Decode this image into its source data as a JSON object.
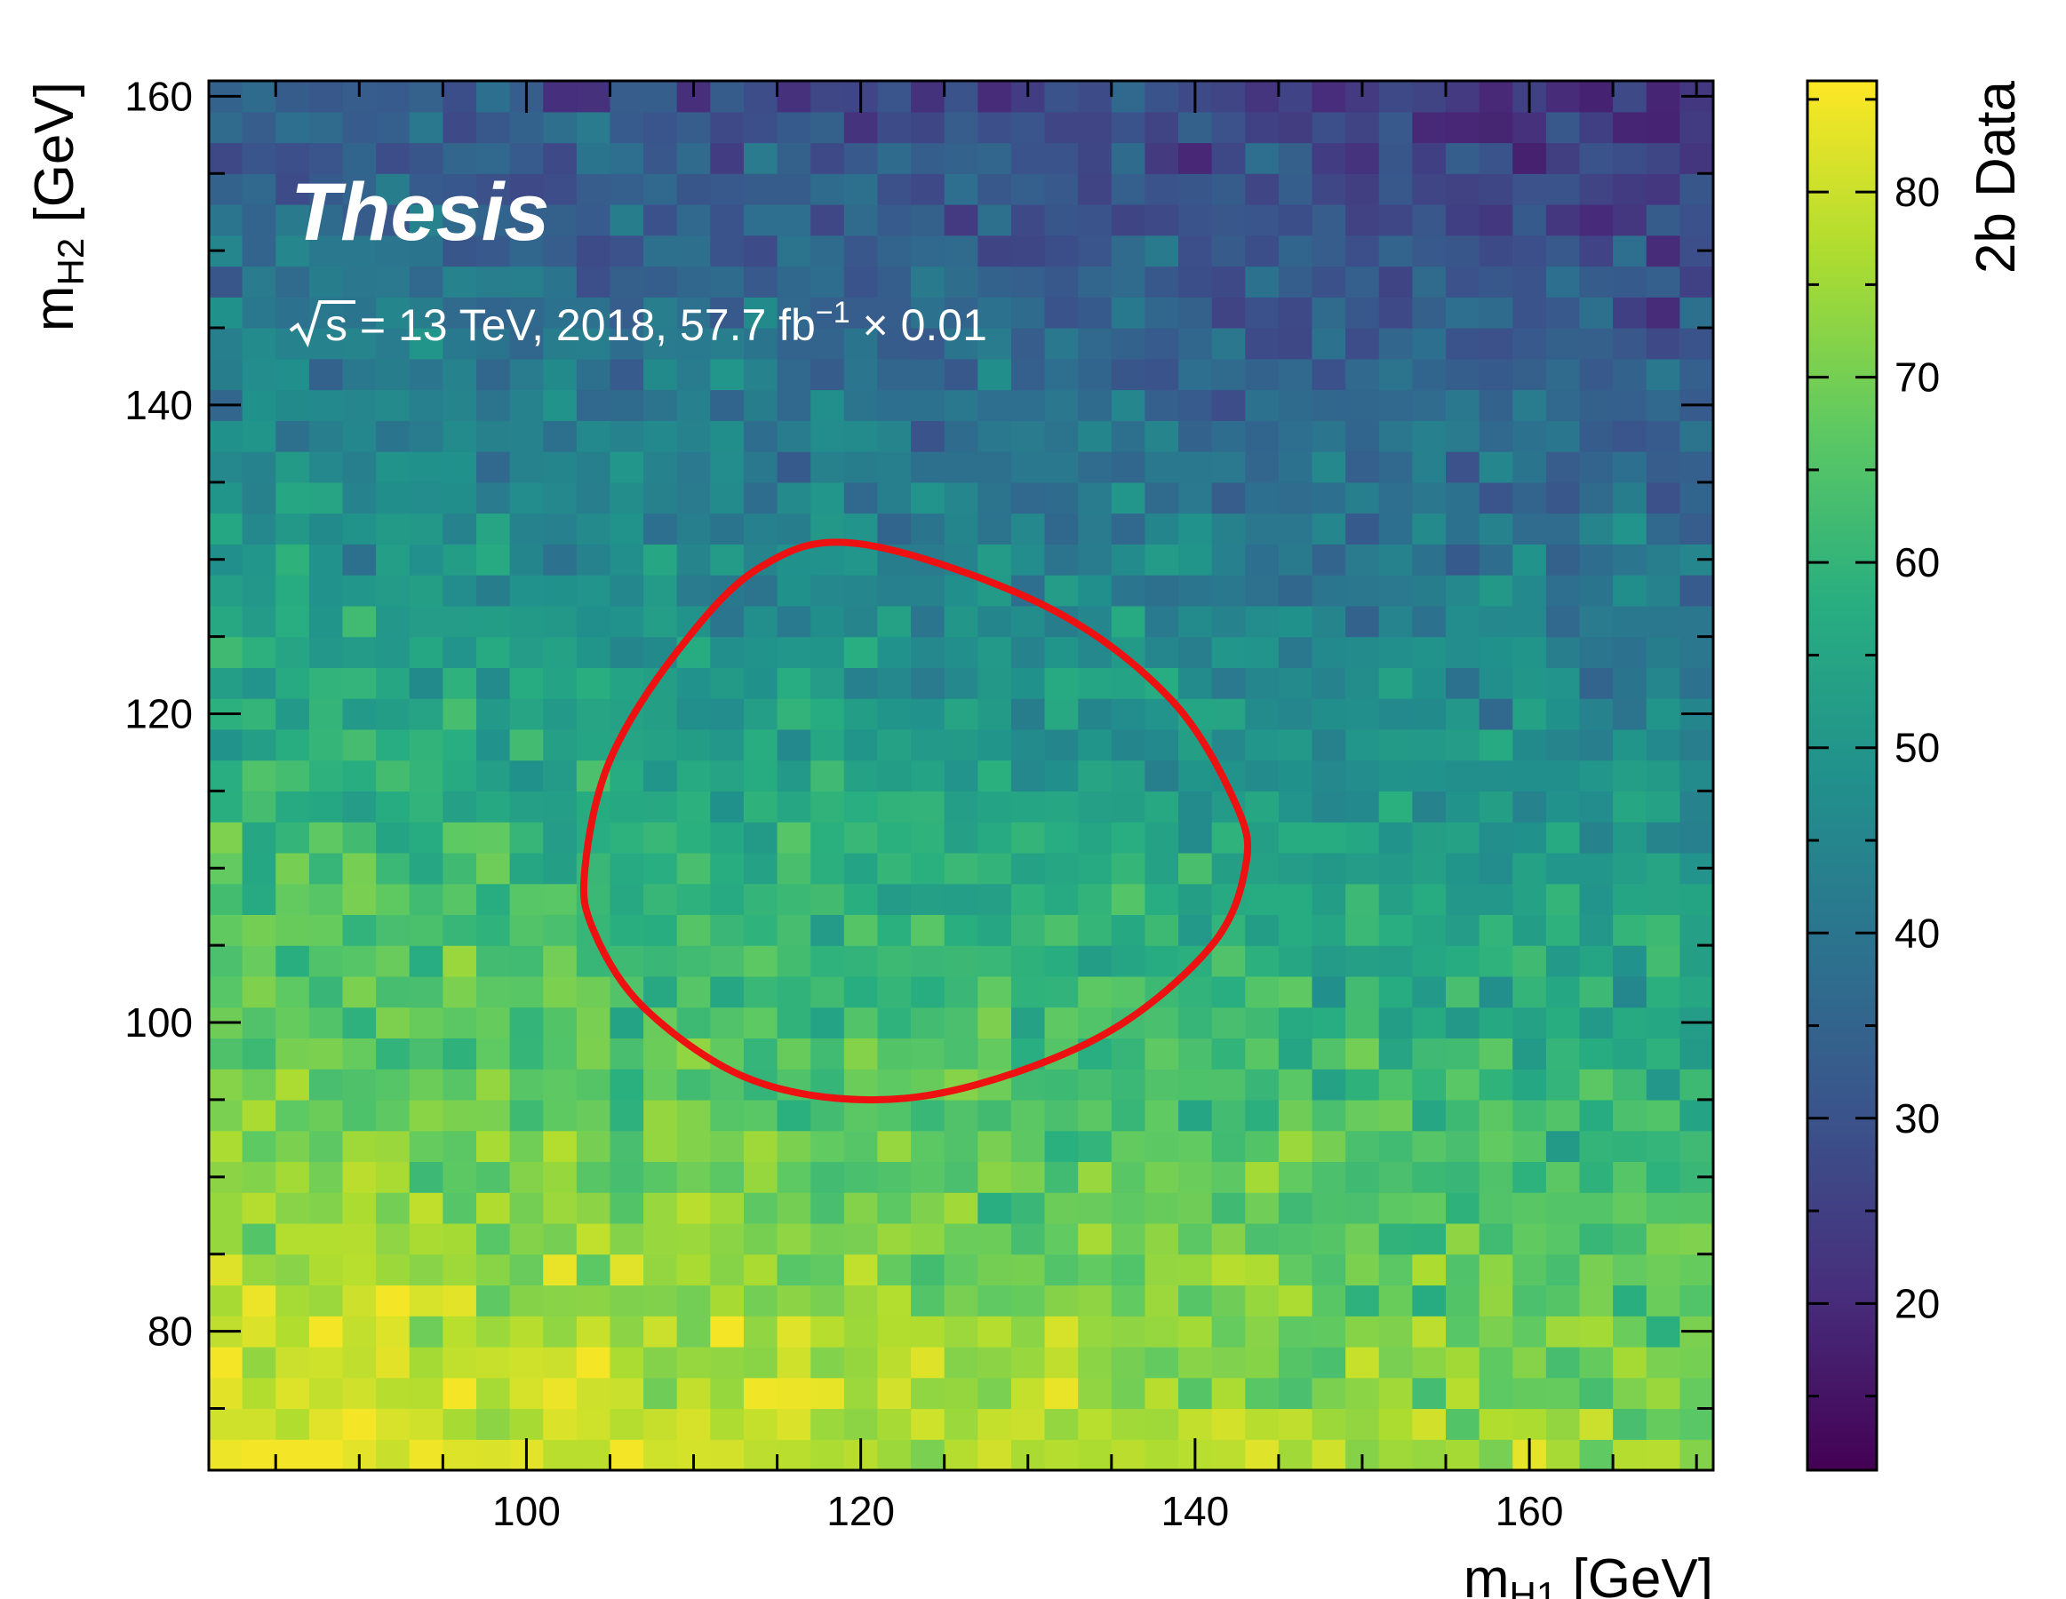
{
  "chart_data": {
    "type": "heatmap",
    "title": "Thesis",
    "subtitle_prefix": "s = 13 TeV, 2018, 57.7 fb",
    "subtitle_sup": "−1",
    "subtitle_suffix": " × 0.01",
    "xlabel_main": "m",
    "xlabel_sub": "H1",
    "xlabel_unit": " [GeV]",
    "ylabel_main": "m",
    "ylabel_sub": "H2",
    "ylabel_unit": " [GeV]",
    "colorbar_label": "2b Data",
    "xlim": [
      81,
      171
    ],
    "ylim": [
      71,
      161
    ],
    "bins": [
      45,
      45
    ],
    "xticks": [
      {
        "v": 100,
        "label": "100"
      },
      {
        "v": 120,
        "label": "120"
      },
      {
        "v": 140,
        "label": "140"
      },
      {
        "v": 160,
        "label": "160"
      }
    ],
    "yticks": [
      {
        "v": 80,
        "label": "80"
      },
      {
        "v": 100,
        "label": "100"
      },
      {
        "v": 120,
        "label": "120"
      },
      {
        "v": 140,
        "label": "140"
      },
      {
        "v": 160,
        "label": "160"
      }
    ],
    "colorbar_range": [
      11,
      86
    ],
    "colorbar_ticks": [
      {
        "v": 20,
        "label": "20"
      },
      {
        "v": 30,
        "label": "30"
      },
      {
        "v": 40,
        "label": "40"
      },
      {
        "v": 50,
        "label": "50"
      },
      {
        "v": 60,
        "label": "60"
      },
      {
        "v": 70,
        "label": "70"
      },
      {
        "v": 80,
        "label": "80"
      }
    ],
    "colormap": "viridis",
    "density_model": {
      "description": "estimated bin counts: mean falls with mH2 and mH1, plus random scatter",
      "base": 84,
      "slope_y": 0.57,
      "slope_x": 0.12,
      "x_ref": 81,
      "y_ref": 71,
      "noise": 6,
      "min": 12,
      "max": 85
    },
    "signal_region": {
      "shape": "closed-curve",
      "color": "#ee1111",
      "center": [
        120,
        110
      ],
      "points": [
        [
          120,
          131
        ],
        [
          131,
          127
        ],
        [
          138.5,
          121
        ],
        [
          142.5,
          114
        ],
        [
          143,
          110
        ],
        [
          141,
          105
        ],
        [
          135,
          99.5
        ],
        [
          127,
          96
        ],
        [
          120,
          95
        ],
        [
          113,
          96.5
        ],
        [
          107,
          101
        ],
        [
          104,
          106
        ],
        [
          103.5,
          110
        ],
        [
          105,
          117
        ],
        [
          109,
          124
        ],
        [
          114,
          129.5
        ]
      ]
    }
  }
}
